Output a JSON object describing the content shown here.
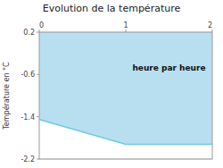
{
  "chart_data": {
    "type": "area",
    "title": "Evolution de la température",
    "ylabel": "Température en °C",
    "x": [
      0,
      1,
      2
    ],
    "series": [
      {
        "values": [
          -1.45,
          -1.92,
          -1.92
        ],
        "color": "#6ec8e0"
      }
    ],
    "color": "#b8dff0",
    "fill_to": 0.2,
    "xlim": [
      0,
      2
    ],
    "ylim": [
      -2.2,
      0.2
    ],
    "xticks": [
      0,
      1,
      2
    ],
    "yticks": [
      0.2,
      -0.6,
      -1.4,
      -2.2
    ],
    "grid": true,
    "annotations": [
      {
        "text": "heure par heure",
        "x": 1.5,
        "y": -0.48
      }
    ]
  }
}
